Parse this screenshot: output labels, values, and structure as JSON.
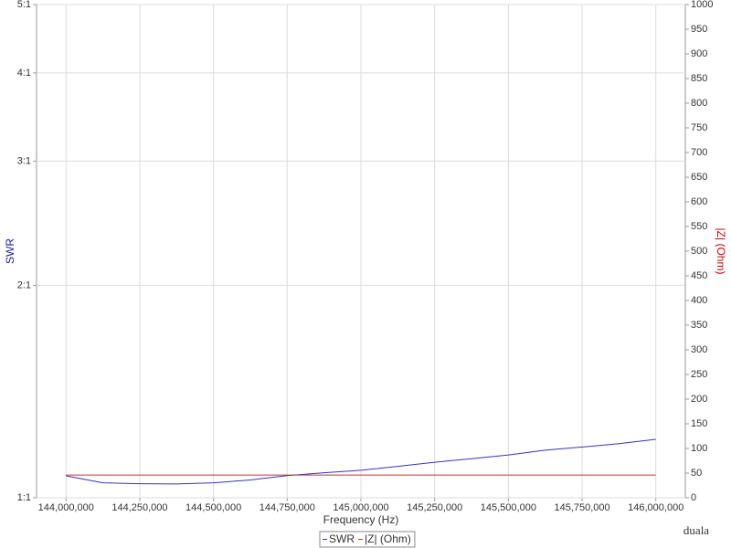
{
  "chart_data": {
    "type": "line",
    "x_label": "Frequency (Hz)",
    "y_label": "SWR",
    "y2_label": "|Z| (Ohm)",
    "y_label_color": "#1a1aa6",
    "y2_label_color": "#cc0000",
    "y_log": true,
    "grid": true,
    "legend": "bottom",
    "watermark": "duala",
    "x": [
      144000000,
      144125000,
      144250000,
      144375000,
      144500000,
      144625000,
      144750000,
      144875000,
      145000000,
      145125000,
      145250000,
      145375000,
      145500000,
      145625000,
      145750000,
      145875000,
      146000000
    ],
    "xlim": [
      143900000,
      146100000
    ],
    "xticks": [
      {
        "value": 144000000,
        "label": "144,000,000"
      },
      {
        "value": 144250000,
        "label": "144,250,000"
      },
      {
        "value": 144500000,
        "label": "144,500,000"
      },
      {
        "value": 144750000,
        "label": "144,750,000"
      },
      {
        "value": 145000000,
        "label": "145,000,000"
      },
      {
        "value": 145250000,
        "label": "145,250,000"
      },
      {
        "value": 145500000,
        "label": "145,500,000"
      },
      {
        "value": 145750000,
        "label": "145,750,000"
      },
      {
        "value": 146000000,
        "label": "146,000,000"
      }
    ],
    "ylim": [
      1,
      5
    ],
    "yticks": [
      {
        "value": 1,
        "label": "1:1"
      },
      {
        "value": 2,
        "label": "2:1"
      },
      {
        "value": 3,
        "label": "3:1"
      },
      {
        "value": 4,
        "label": "4:1"
      },
      {
        "value": 5,
        "label": "5:1"
      }
    ],
    "y2lim": [
      0,
      1000
    ],
    "y2ticks": [
      0,
      50,
      100,
      150,
      200,
      250,
      300,
      350,
      400,
      450,
      500,
      550,
      600,
      650,
      700,
      750,
      800,
      850,
      900,
      950,
      1000
    ],
    "series": [
      {
        "name": "SWR",
        "color": "#3333cc",
        "values": [
          1.074,
          1.05,
          1.047,
          1.046,
          1.05,
          1.06,
          1.075,
          1.085,
          1.094,
          1.108,
          1.123,
          1.136,
          1.15,
          1.168,
          1.18,
          1.193,
          1.21
        ]
      },
      {
        "name": "|Z| (Ohm)",
        "color": "#cc3333",
        "axis": "y2",
        "values": [
          46,
          46,
          46,
          46,
          46,
          46,
          46,
          46,
          46,
          46,
          46,
          46,
          46,
          46,
          46,
          46,
          46
        ]
      }
    ]
  }
}
